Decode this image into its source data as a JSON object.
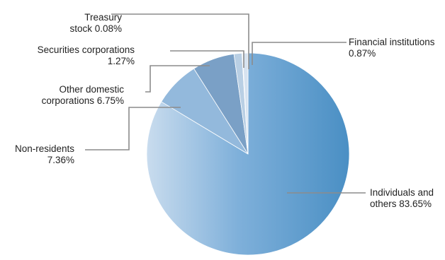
{
  "chart_data": {
    "type": "pie",
    "title": "",
    "slices": [
      {
        "name": "Individuals and others",
        "value": 83.65,
        "label_lines": [
          "Individuals and",
          "others 83.65%"
        ],
        "color": "#4d92c6"
      },
      {
        "name": "Non-residents",
        "value": 7.36,
        "label_lines": [
          "Non-residents",
          "7.36%"
        ],
        "color": "#93b9dc"
      },
      {
        "name": "Other domestic corporations",
        "value": 6.75,
        "label_lines": [
          "Other domestic",
          "corporations 6.75%"
        ],
        "color": "#7aa0c6"
      },
      {
        "name": "Securities corporations",
        "value": 1.27,
        "label_lines": [
          "Securities corporations",
          "1.27%"
        ],
        "color": "#b9cfe4"
      },
      {
        "name": "Treasury stock",
        "value": 0.08,
        "label_lines": [
          "Treasury",
          "stock 0.08%"
        ],
        "color": "#cfdded"
      },
      {
        "name": "Financial institutions",
        "value": 0.87,
        "label_lines": [
          "Financial institutions",
          "0.87%"
        ],
        "color": "#d7e3f0"
      }
    ],
    "start_angle_deg": 0,
    "direction": "clockwise",
    "leader_line_color": "#8c8c8c"
  }
}
